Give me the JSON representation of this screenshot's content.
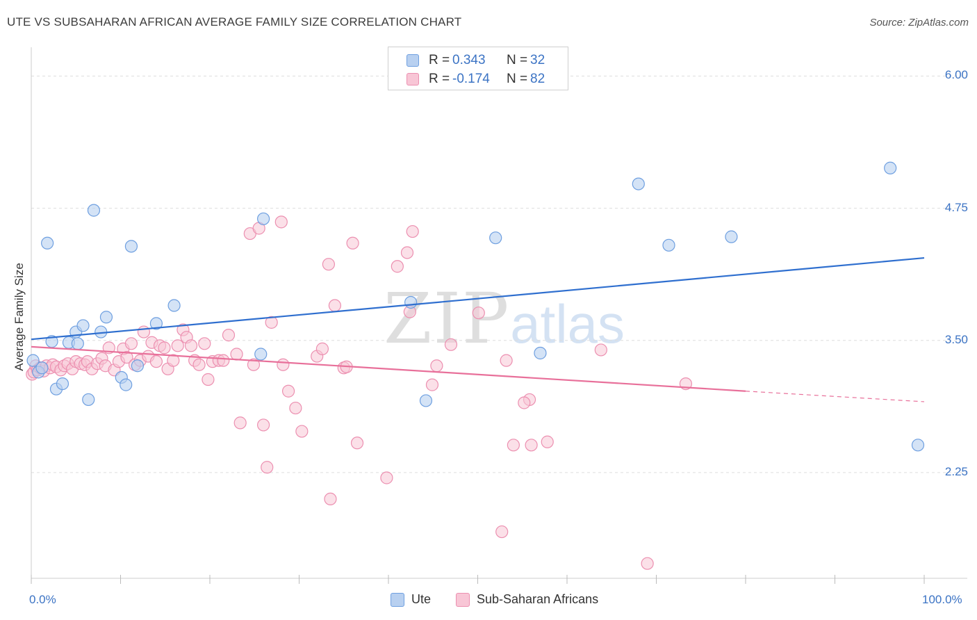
{
  "title": "UTE VS SUBSAHARAN AFRICAN AVERAGE FAMILY SIZE CORRELATION CHART",
  "source": "Source: ZipAtlas.com",
  "watermark": {
    "zip": "ZIP",
    "atlas": "atlas"
  },
  "legend": {
    "r_label": "R =",
    "n_label": "N =",
    "rows": [
      {
        "r": "0.343",
        "n": "32"
      },
      {
        "r": "-0.174",
        "n": "82"
      }
    ]
  },
  "colors": {
    "ute_fill": "#b8d0f0",
    "ute_stroke": "#6e9fe0",
    "ute_line": "#2f6fcf",
    "ssa_fill": "#f8c6d6",
    "ssa_stroke": "#ec8fb0",
    "ssa_line": "#e8709a",
    "axis_label": "#3b73c4",
    "grid": "#dddddd"
  },
  "chart_data": {
    "type": "scatter",
    "title": "UTE VS SUBSAHARAN AFRICAN AVERAGE FAMILY SIZE CORRELATION CHART",
    "xlabel": "",
    "ylabel": "Average Family Size",
    "xlim": [
      0,
      100
    ],
    "ylim": [
      1.25,
      6.2
    ],
    "x_tick_labels": [
      "0.0%",
      "100.0%"
    ],
    "y_ticks": [
      2.25,
      3.5,
      4.75,
      6.0
    ],
    "y_tick_labels": [
      "2.25",
      "3.50",
      "4.75",
      "6.00"
    ],
    "grid": true,
    "series": [
      {
        "name": "Ute",
        "r": 0.343,
        "n": 32,
        "trend": {
          "x": [
            0,
            100
          ],
          "y": [
            3.51,
            4.28
          ]
        },
        "points": [
          [
            0.2,
            3.31
          ],
          [
            0.8,
            3.2
          ],
          [
            1.2,
            3.24
          ],
          [
            1.8,
            4.42
          ],
          [
            2.3,
            3.49
          ],
          [
            2.8,
            3.04
          ],
          [
            3.5,
            3.09
          ],
          [
            4.2,
            3.48
          ],
          [
            5.0,
            3.58
          ],
          [
            5.2,
            3.47
          ],
          [
            5.8,
            3.64
          ],
          [
            6.4,
            2.94
          ],
          [
            7.0,
            4.73
          ],
          [
            7.8,
            3.58
          ],
          [
            8.4,
            3.72
          ],
          [
            10.1,
            3.15
          ],
          [
            10.6,
            3.08
          ],
          [
            11.2,
            4.39
          ],
          [
            11.9,
            3.26
          ],
          [
            14.0,
            3.66
          ],
          [
            16.0,
            3.83
          ],
          [
            25.7,
            3.37
          ],
          [
            26.0,
            4.65
          ],
          [
            42.5,
            3.86
          ],
          [
            44.2,
            2.93
          ],
          [
            52.0,
            4.47
          ],
          [
            57.0,
            3.38
          ],
          [
            68.0,
            4.98
          ],
          [
            71.4,
            4.4
          ],
          [
            78.4,
            4.48
          ],
          [
            96.2,
            5.13
          ],
          [
            99.3,
            2.51
          ]
        ]
      },
      {
        "name": "Sub-Saharan Africans",
        "r": -0.174,
        "n": 82,
        "trend": {
          "x": [
            0,
            80
          ],
          "y": [
            3.44,
            3.02
          ]
        },
        "trend_dashed": {
          "x": [
            80,
            100
          ],
          "y": [
            3.02,
            2.92
          ]
        },
        "points": [
          [
            0.1,
            3.18
          ],
          [
            0.3,
            3.2
          ],
          [
            0.5,
            3.26
          ],
          [
            0.7,
            3.22
          ],
          [
            1.0,
            3.24
          ],
          [
            1.4,
            3.21
          ],
          [
            1.7,
            3.26
          ],
          [
            2.1,
            3.24
          ],
          [
            2.4,
            3.27
          ],
          [
            2.8,
            3.25
          ],
          [
            3.3,
            3.22
          ],
          [
            3.7,
            3.26
          ],
          [
            4.1,
            3.28
          ],
          [
            4.6,
            3.23
          ],
          [
            5.0,
            3.3
          ],
          [
            5.5,
            3.28
          ],
          [
            6.0,
            3.27
          ],
          [
            6.3,
            3.3
          ],
          [
            6.8,
            3.23
          ],
          [
            7.4,
            3.28
          ],
          [
            7.9,
            3.33
          ],
          [
            8.3,
            3.26
          ],
          [
            8.7,
            3.43
          ],
          [
            9.3,
            3.22
          ],
          [
            9.8,
            3.3
          ],
          [
            10.3,
            3.42
          ],
          [
            10.7,
            3.34
          ],
          [
            11.2,
            3.47
          ],
          [
            11.6,
            3.27
          ],
          [
            12.2,
            3.31
          ],
          [
            12.6,
            3.58
          ],
          [
            13.1,
            3.35
          ],
          [
            13.5,
            3.48
          ],
          [
            14.0,
            3.3
          ],
          [
            14.4,
            3.45
          ],
          [
            14.9,
            3.43
          ],
          [
            15.3,
            3.23
          ],
          [
            15.9,
            3.31
          ],
          [
            16.4,
            3.45
          ],
          [
            17.0,
            3.6
          ],
          [
            17.4,
            3.53
          ],
          [
            17.9,
            3.45
          ],
          [
            18.3,
            3.31
          ],
          [
            18.8,
            3.27
          ],
          [
            19.4,
            3.47
          ],
          [
            19.8,
            3.13
          ],
          [
            20.3,
            3.3
          ],
          [
            21.0,
            3.31
          ],
          [
            21.5,
            3.31
          ],
          [
            22.1,
            3.55
          ],
          [
            23.0,
            3.37
          ],
          [
            23.4,
            2.72
          ],
          [
            24.5,
            4.51
          ],
          [
            24.9,
            3.27
          ],
          [
            25.5,
            4.56
          ],
          [
            26.0,
            2.7
          ],
          [
            26.4,
            2.3
          ],
          [
            26.9,
            3.67
          ],
          [
            28.0,
            4.62
          ],
          [
            28.2,
            3.27
          ],
          [
            28.8,
            3.02
          ],
          [
            29.6,
            2.86
          ],
          [
            30.3,
            2.64
          ],
          [
            32.0,
            3.35
          ],
          [
            32.6,
            3.42
          ],
          [
            33.3,
            4.22
          ],
          [
            34.0,
            3.83
          ],
          [
            35.0,
            3.24
          ],
          [
            35.3,
            3.25
          ],
          [
            36.0,
            4.42
          ],
          [
            36.5,
            2.53
          ],
          [
            39.8,
            2.2
          ],
          [
            42.4,
            3.77
          ],
          [
            44.9,
            3.08
          ],
          [
            45.4,
            3.26
          ],
          [
            47.0,
            3.46
          ],
          [
            50.1,
            3.76
          ],
          [
            53.2,
            3.31
          ],
          [
            54.0,
            2.51
          ],
          [
            55.8,
            2.94
          ],
          [
            57.8,
            2.54
          ],
          [
            63.8,
            3.41
          ]
        ],
        "extra_points": [
          [
            41.0,
            4.2
          ],
          [
            42.1,
            4.33
          ],
          [
            42.7,
            4.53
          ],
          [
            55.2,
            2.91
          ],
          [
            56.0,
            2.51
          ],
          [
            69.0,
            1.39
          ],
          [
            73.3,
            3.09
          ],
          [
            52.7,
            1.69
          ],
          [
            33.5,
            2.0
          ]
        ]
      }
    ]
  },
  "bottom_legend": [
    "Ute",
    "Sub-Saharan Africans"
  ]
}
